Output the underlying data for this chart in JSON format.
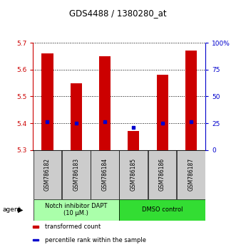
{
  "title": "GDS4488 / 1380280_at",
  "samples": [
    "GSM786182",
    "GSM786183",
    "GSM786184",
    "GSM786185",
    "GSM786186",
    "GSM786187"
  ],
  "red_values": [
    5.66,
    5.55,
    5.65,
    5.37,
    5.58,
    5.67
  ],
  "blue_values": [
    5.405,
    5.4,
    5.405,
    5.383,
    5.4,
    5.405
  ],
  "ylim_left": [
    5.3,
    5.7
  ],
  "yticks_left": [
    5.3,
    5.4,
    5.5,
    5.6,
    5.7
  ],
  "yticks_right": [
    0,
    25,
    50,
    75,
    100
  ],
  "ytick_labels_right": [
    "0",
    "25",
    "50",
    "75",
    "100%"
  ],
  "bar_bottom": 5.3,
  "bar_color": "#cc0000",
  "dot_color": "#0000cc",
  "agent_groups": [
    {
      "label": "Notch inhibitor DAPT\n(10 μM.)",
      "samples": [
        0,
        1,
        2
      ],
      "color": "#aaffaa"
    },
    {
      "label": "DMSO control",
      "samples": [
        3,
        4,
        5
      ],
      "color": "#33dd33"
    }
  ],
  "legend_items": [
    {
      "label": "transformed count",
      "color": "#cc0000"
    },
    {
      "label": "percentile rank within the sample",
      "color": "#0000cc"
    }
  ],
  "bar_width": 0.4,
  "title_fontsize": 8.5,
  "tick_fontsize": 6.5,
  "sample_fontsize": 5.5,
  "agent_fontsize": 6.0,
  "legend_fontsize": 6.0
}
